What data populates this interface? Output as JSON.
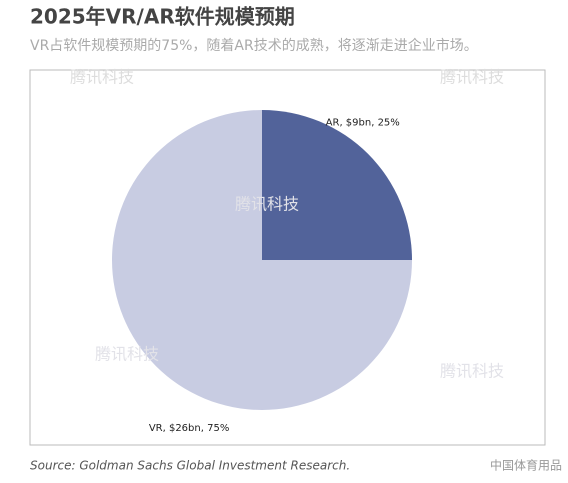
{
  "title": "2025年VR/AR软件规模预期",
  "subtitle": "VR占软件规模预期的75%，随着AR技术的成熟，将逐渐走进企业市场。",
  "chart_data": {
    "type": "pie",
    "values": [
      25,
      75
    ],
    "value_labels": [
      "AR, $9bn, 25%",
      "VR, $26bn, 75%"
    ],
    "colors": [
      "#52639a",
      "#c8cce2"
    ]
  },
  "source": "Source: Goldman Sachs Global Investment Research.",
  "watermark": "腾讯科技",
  "account": "中国体育用品"
}
